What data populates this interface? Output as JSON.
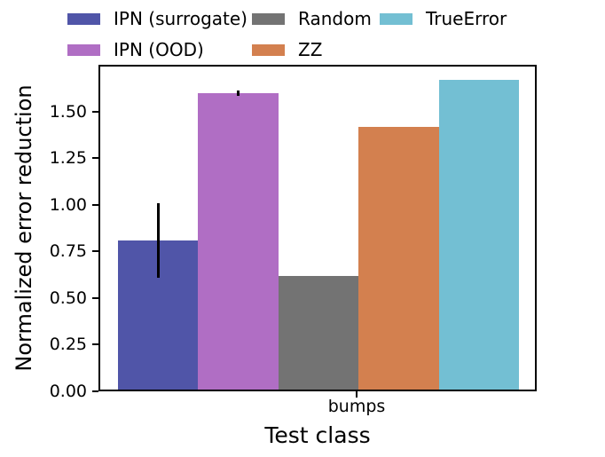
{
  "chart_data": {
    "type": "bar",
    "title": "",
    "xlabel": "Test class",
    "ylabel": "Normalized error reduction",
    "categories": [
      "bumps"
    ],
    "series": [
      {
        "name": "IPN (surrogate)",
        "color": "#5055A8",
        "values": [
          0.8
        ],
        "error": [
          0.2
        ]
      },
      {
        "name": "IPN (OOD)",
        "color": "#B06EC4",
        "values": [
          1.59
        ],
        "error": [
          0.015
        ]
      },
      {
        "name": "Random",
        "color": "#737373",
        "values": [
          0.61
        ],
        "error": [
          0
        ]
      },
      {
        "name": "ZZ",
        "color": "#D3804F",
        "values": [
          1.41
        ],
        "error": [
          0
        ]
      },
      {
        "name": "TrueError",
        "color": "#73BFD3",
        "values": [
          1.66
        ],
        "error": [
          0
        ]
      }
    ],
    "ylim": [
      0,
      1.75
    ],
    "yticks": [
      "0.00",
      "0.25",
      "0.50",
      "0.75",
      "1.00",
      "1.25",
      "1.50"
    ],
    "grid": false,
    "legend_position": "top",
    "axis_color": "#000000"
  }
}
